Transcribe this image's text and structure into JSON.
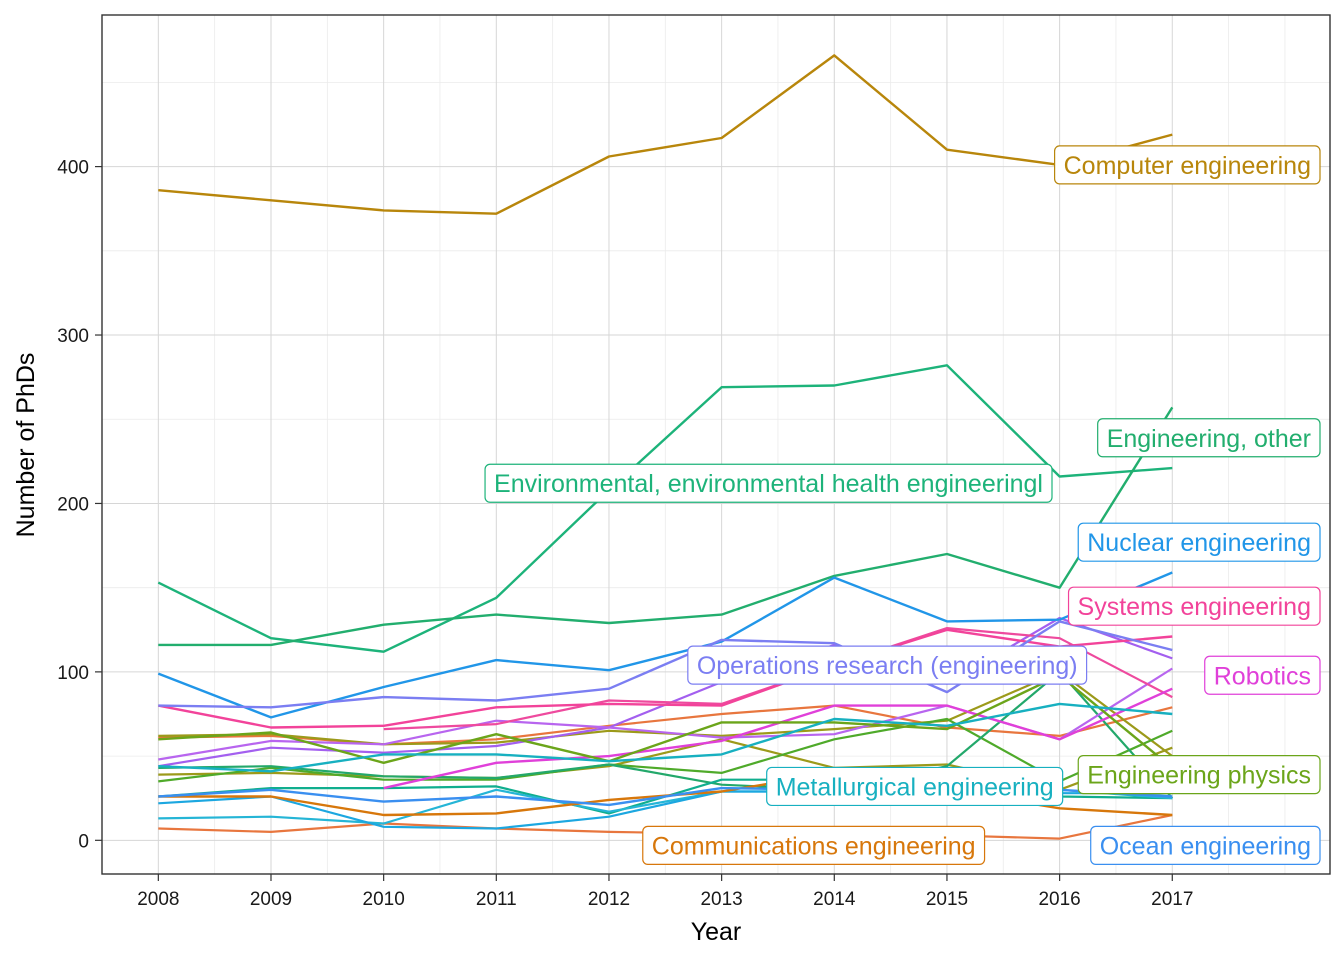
{
  "chart_data": {
    "type": "line",
    "title": "",
    "xlabel": "Year",
    "ylabel": "Number of PhDs",
    "x": [
      2008,
      2009,
      2010,
      2011,
      2012,
      2013,
      2014,
      2015,
      2016,
      2017
    ],
    "xlim": [
      2007.5,
      2018.4
    ],
    "ylim": [
      -20,
      490
    ],
    "y_ticks": [
      0,
      100,
      200,
      300,
      400
    ],
    "grid": true,
    "legend": "none (direct labels at line ends)",
    "series": [
      {
        "name": "Computer engineering",
        "color": "#B8860B",
        "values": [
          386,
          380,
          374,
          372,
          406,
          417,
          466,
          410,
          401,
          419
        ]
      },
      {
        "name": "Environmental, environmental health engineeringl",
        "color": "#1DB37A",
        "values": [
          153,
          120,
          112,
          144,
          208,
          269,
          270,
          282,
          216,
          221
        ]
      },
      {
        "name": "Engineering, other",
        "color": "#22AE6E",
        "values": [
          116,
          116,
          128,
          134,
          129,
          134,
          157,
          170,
          150,
          257
        ]
      },
      {
        "name": "Nuclear engineering",
        "color": "#2196E8",
        "values": [
          99,
          73,
          91,
          107,
          101,
          118,
          156,
          130,
          131,
          159
        ]
      },
      {
        "name": "Systems engineering",
        "color": "#F2439A",
        "values": [
          80,
          67,
          68,
          79,
          81,
          80,
          104,
          125,
          115,
          121
        ]
      },
      {
        "name": "Operations research (engineering)",
        "color": "#7B7EF2",
        "values": [
          80,
          79,
          85,
          83,
          90,
          119,
          117,
          88,
          130,
          113
        ]
      },
      {
        "name": "Robotics",
        "color": "#E040D9",
        "values": [
          null,
          null,
          31,
          46,
          50,
          59,
          80,
          80,
          60,
          90
        ]
      },
      {
        "name": "Engineering physics",
        "color": "#6BA51A",
        "values": [
          60,
          64,
          46,
          63,
          47,
          70,
          70,
          66,
          98,
          43
        ]
      },
      {
        "name": "Metallurgical engineering",
        "color": "#17B0C0",
        "values": [
          44,
          41,
          51,
          51,
          47,
          51,
          72,
          68,
          81,
          75
        ]
      },
      {
        "name": "Communications engineering",
        "color": "#D7770B",
        "values": [
          26,
          26,
          15,
          16,
          24,
          29,
          40,
          30,
          19,
          15
        ]
      },
      {
        "name": "Ocean engineering",
        "color": "#3A8FF0",
        "values": [
          26,
          30,
          23,
          26,
          21,
          31,
          30,
          35,
          30,
          26
        ]
      }
    ],
    "background_series": [
      {
        "color": "#E8763E",
        "values": [
          61,
          62,
          57,
          60,
          68,
          75,
          80,
          67,
          62,
          79
        ]
      },
      {
        "color": "#E8763E",
        "values": [
          7,
          5,
          10,
          7,
          5,
          4,
          4,
          3,
          1,
          15
        ]
      },
      {
        "color": "#9C9A1A",
        "values": [
          39,
          40,
          38,
          37,
          44,
          60,
          43,
          45,
          30,
          55
        ]
      },
      {
        "color": "#9C9A1A",
        "values": [
          62,
          63,
          57,
          58,
          65,
          62,
          66,
          71,
          100,
          50
        ]
      },
      {
        "color": "#4FAA2A",
        "values": [
          35,
          43,
          36,
          36,
          45,
          40,
          60,
          72,
          35,
          65
        ]
      },
      {
        "color": "#23A86B",
        "values": [
          43,
          44,
          38,
          37,
          45,
          33,
          30,
          44,
          100,
          25
        ]
      },
      {
        "color": "#10AE8E",
        "values": [
          26,
          31,
          31,
          32,
          16,
          36,
          36,
          40,
          26,
          25
        ]
      },
      {
        "color": "#25B5D6",
        "values": [
          13,
          14,
          10,
          30,
          17,
          29,
          29,
          30,
          30,
          25
        ]
      },
      {
        "color": "#1CA7E0",
        "values": [
          22,
          26,
          8,
          7,
          14,
          29,
          29,
          33,
          28,
          28
        ]
      },
      {
        "color": "#A35FEF",
        "values": [
          44,
          55,
          52,
          56,
          67,
          94,
          116,
          93,
          132,
          108
        ]
      },
      {
        "color": "#B865EF",
        "values": [
          48,
          59,
          57,
          71,
          67,
          61,
          63,
          80,
          60,
          102
        ]
      },
      {
        "color": "#EE4A9E",
        "values": [
          null,
          null,
          66,
          69,
          83,
          81,
          104,
          126,
          120,
          85
        ]
      }
    ],
    "labels": [
      {
        "series": 0,
        "text": "Computer engineering",
        "x_anchor": 2018.4,
        "y": 401,
        "align": "right"
      },
      {
        "series": 1,
        "text": "Environmental, environmental health engineeringl",
        "x_anchor": 2010.9,
        "y": 212,
        "align": "left"
      },
      {
        "series": 2,
        "text": "Engineering, other",
        "x_anchor": 2018.4,
        "y": 239,
        "align": "right"
      },
      {
        "series": 3,
        "text": "Nuclear engineering",
        "x_anchor": 2018.4,
        "y": 177,
        "align": "right"
      },
      {
        "series": 4,
        "text": "Systems engineering",
        "x_anchor": 2018.4,
        "y": 139,
        "align": "right"
      },
      {
        "series": 5,
        "text": "Operations research (engineering)",
        "x_anchor": 2012.7,
        "y": 104,
        "align": "left"
      },
      {
        "series": 6,
        "text": "Robotics",
        "x_anchor": 2018.4,
        "y": 98,
        "align": "right"
      },
      {
        "series": 7,
        "text": "Engineering physics",
        "x_anchor": 2018.4,
        "y": 39,
        "align": "right"
      },
      {
        "series": 8,
        "text": "Metallurgical engineering",
        "x_anchor": 2013.4,
        "y": 32,
        "align": "left"
      },
      {
        "series": 9,
        "text": "Communications engineering",
        "x_anchor": 2012.3,
        "y": -3,
        "align": "left"
      },
      {
        "series": 10,
        "text": "Ocean engineering",
        "x_anchor": 2018.4,
        "y": -3,
        "align": "right"
      }
    ]
  }
}
